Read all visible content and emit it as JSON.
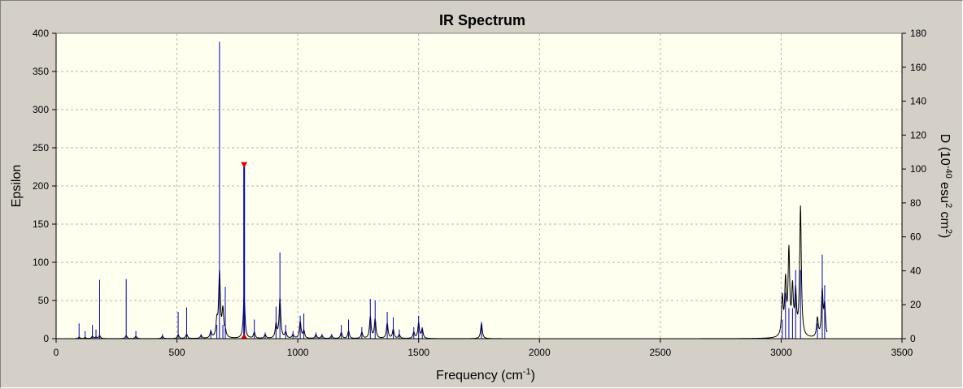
{
  "chart_data": {
    "type": "line",
    "title": "IR Spectrum",
    "xlabel": "Frequency (cm",
    "xlabel_sup": "-1",
    "xlabel_end": ")",
    "ylabel": "Epsilon",
    "y2label_parts": [
      "D (10",
      "-40",
      " esu",
      "2",
      " cm",
      "2",
      ")"
    ],
    "xlim": [
      0,
      3500
    ],
    "ylim": [
      0,
      400
    ],
    "y2lim": [
      0,
      180
    ],
    "x_ticks": [
      0,
      500,
      1000,
      1500,
      2000,
      2500,
      3000,
      3500
    ],
    "y_ticks": [
      0,
      50,
      100,
      150,
      200,
      250,
      300,
      350,
      400
    ],
    "y2_ticks": [
      0,
      20,
      40,
      60,
      80,
      100,
      120,
      140,
      160,
      180
    ],
    "grid": true,
    "colors": {
      "plot_bg": "#ffffef",
      "grid": "#b4b4b4",
      "spectrum": "#000000",
      "sticks": "#0000c0",
      "marker": "#e00000"
    },
    "series": [
      {
        "name": "",
        "kind": "spectrum",
        "gamma": 4,
        "base_start": 80,
        "base_end": 3190,
        "peaks": [
          [
            95,
            2
          ],
          [
            120,
            1.5
          ],
          [
            150,
            3
          ],
          [
            165,
            2
          ],
          [
            180,
            4
          ],
          [
            290,
            4
          ],
          [
            330,
            3
          ],
          [
            440,
            3
          ],
          [
            505,
            5
          ],
          [
            540,
            6
          ],
          [
            600,
            4
          ],
          [
            640,
            8
          ],
          [
            665,
            20
          ],
          [
            676,
            85
          ],
          [
            690,
            35
          ],
          [
            700,
            8
          ],
          [
            778,
            58
          ],
          [
            820,
            8
          ],
          [
            865,
            5
          ],
          [
            910,
            18
          ],
          [
            926,
            52
          ],
          [
            950,
            8
          ],
          [
            980,
            5
          ],
          [
            1010,
            22
          ],
          [
            1025,
            10
          ],
          [
            1075,
            5
          ],
          [
            1100,
            4
          ],
          [
            1140,
            4
          ],
          [
            1180,
            8
          ],
          [
            1210,
            10
          ],
          [
            1265,
            8
          ],
          [
            1300,
            28
          ],
          [
            1320,
            25
          ],
          [
            1370,
            20
          ],
          [
            1395,
            12
          ],
          [
            1420,
            5
          ],
          [
            1480,
            8
          ],
          [
            1500,
            20
          ],
          [
            1515,
            12
          ],
          [
            1760,
            20
          ],
          [
            3005,
            50
          ],
          [
            3018,
            70
          ],
          [
            3032,
            110
          ],
          [
            3047,
            60
          ],
          [
            3060,
            55
          ],
          [
            3080,
            170
          ],
          [
            3150,
            25
          ],
          [
            3170,
            60
          ],
          [
            3180,
            40
          ]
        ]
      },
      {
        "name": "",
        "kind": "sticks",
        "points": [
          [
            95,
            20
          ],
          [
            120,
            10
          ],
          [
            150,
            18
          ],
          [
            165,
            12
          ],
          [
            180,
            77
          ],
          [
            290,
            78
          ],
          [
            330,
            10
          ],
          [
            440,
            6
          ],
          [
            505,
            35
          ],
          [
            540,
            41
          ],
          [
            600,
            6
          ],
          [
            640,
            12
          ],
          [
            665,
            18
          ],
          [
            676,
            389
          ],
          [
            690,
            18
          ],
          [
            700,
            68
          ],
          [
            778,
            228
          ],
          [
            820,
            25
          ],
          [
            865,
            8
          ],
          [
            910,
            42
          ],
          [
            926,
            113
          ],
          [
            950,
            18
          ],
          [
            980,
            10
          ],
          [
            1010,
            30
          ],
          [
            1025,
            33
          ],
          [
            1075,
            8
          ],
          [
            1100,
            6
          ],
          [
            1140,
            6
          ],
          [
            1180,
            18
          ],
          [
            1210,
            25
          ],
          [
            1265,
            15
          ],
          [
            1300,
            52
          ],
          [
            1320,
            50
          ],
          [
            1370,
            35
          ],
          [
            1395,
            28
          ],
          [
            1420,
            12
          ],
          [
            1480,
            15
          ],
          [
            1500,
            30
          ],
          [
            1515,
            15
          ],
          [
            1760,
            22
          ],
          [
            3005,
            25
          ],
          [
            3018,
            60
          ],
          [
            3032,
            40
          ],
          [
            3047,
            40
          ],
          [
            3060,
            90
          ],
          [
            3080,
            90
          ],
          [
            3150,
            20
          ],
          [
            3170,
            110
          ],
          [
            3180,
            70
          ]
        ]
      }
    ],
    "marker_x": 778
  }
}
